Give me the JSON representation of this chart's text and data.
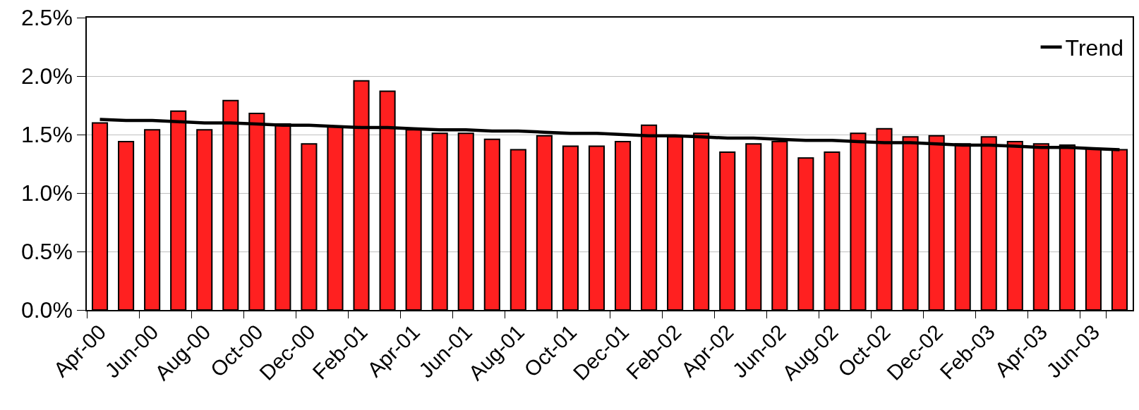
{
  "chart_data": {
    "type": "bar",
    "categories": [
      "Apr-00",
      null,
      "Jun-00",
      null,
      "Aug-00",
      null,
      "Oct-00",
      null,
      "Dec-00",
      null,
      "Feb-01",
      null,
      "Apr-01",
      null,
      "Jun-01",
      null,
      "Aug-01",
      null,
      "Oct-01",
      null,
      "Dec-01",
      null,
      "Feb-02",
      null,
      "Apr-02",
      null,
      "Jun-02",
      null,
      "Aug-02",
      null,
      "Oct-02",
      null,
      "Dec-02",
      null,
      "Feb-03",
      null,
      "Apr-03",
      null,
      "Jun-03",
      null
    ],
    "series": [
      {
        "color": "#ff2020",
        "values": [
          1.6,
          1.44,
          1.54,
          1.7,
          1.54,
          1.79,
          1.68,
          1.59,
          1.42,
          1.57,
          1.96,
          1.87,
          1.54,
          1.51,
          1.51,
          1.46,
          1.37,
          1.49,
          1.4,
          1.4,
          1.44,
          1.58,
          1.48,
          1.51,
          1.35,
          1.42,
          1.44,
          1.3,
          1.35,
          1.51,
          1.55,
          1.48,
          1.49,
          1.42,
          1.48,
          1.44,
          1.42,
          1.41,
          1.38,
          1.37
        ]
      },
      {
        "type": "line",
        "name": "Trend",
        "color": "#000000",
        "values": [
          1.63,
          1.62,
          1.62,
          1.61,
          1.6,
          1.6,
          1.59,
          1.58,
          1.58,
          1.57,
          1.56,
          1.56,
          1.55,
          1.54,
          1.54,
          1.53,
          1.53,
          1.52,
          1.51,
          1.51,
          1.5,
          1.49,
          1.49,
          1.48,
          1.47,
          1.47,
          1.46,
          1.45,
          1.45,
          1.44,
          1.43,
          1.43,
          1.42,
          1.41,
          1.41,
          1.4,
          1.39,
          1.39,
          1.38,
          1.37
        ]
      }
    ],
    "ylim": [
      0,
      2.5
    ],
    "yticks": [
      {
        "value": 0,
        "label": "0.0%"
      },
      {
        "value": 0.5,
        "label": "0.5%"
      },
      {
        "value": 1,
        "label": "1.0%"
      },
      {
        "value": 1.5,
        "label": "1.5%"
      },
      {
        "value": 2,
        "label": "2.0%"
      },
      {
        "value": 2.5,
        "label": "2.5%"
      }
    ],
    "grid": "y",
    "legend": "top right"
  }
}
